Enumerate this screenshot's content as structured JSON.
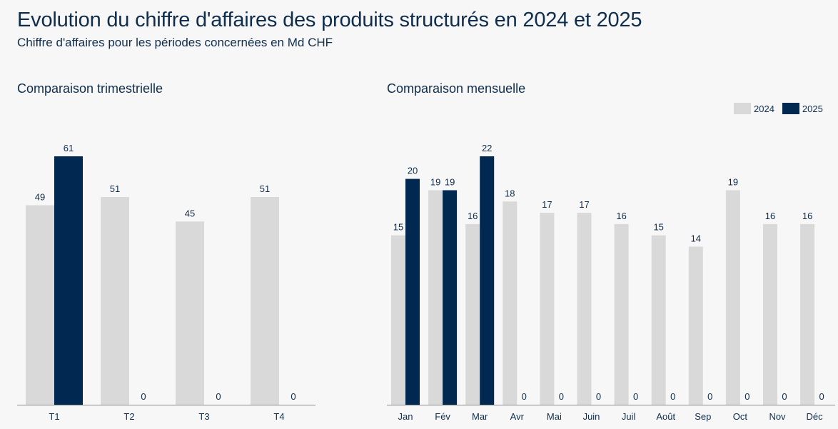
{
  "header": {
    "title": "Evolution du chiffre d'affaires des produits structurés en 2024 et 2025",
    "subtitle": "Chiffre d'affaires pour les périodes concernées en Md CHF"
  },
  "colors": {
    "series_2024": "#d9d9d9",
    "series_2025": "#002850",
    "text": "#0f2d4d",
    "axis": "#8c8c8c"
  },
  "legend": {
    "items": [
      {
        "label": "2024"
      },
      {
        "label": "2025"
      }
    ]
  },
  "chart_data": [
    {
      "type": "bar",
      "title": "Comparaison trimestrielle",
      "xlabel": "",
      "ylabel": "",
      "categories": [
        "T1",
        "T2",
        "T3",
        "T4"
      ],
      "series": [
        {
          "name": "2024",
          "values": [
            49,
            51,
            45,
            51
          ]
        },
        {
          "name": "2025",
          "values": [
            61,
            0,
            0,
            0
          ]
        }
      ],
      "ylim": [
        0,
        61
      ]
    },
    {
      "type": "bar",
      "title": "Comparaison mensuelle",
      "xlabel": "",
      "ylabel": "",
      "categories": [
        "Jan",
        "Fév",
        "Mar",
        "Avr",
        "Mai",
        "Juin",
        "Juil",
        "Août",
        "Sep",
        "Oct",
        "Nov",
        "Déc"
      ],
      "series": [
        {
          "name": "2024",
          "values": [
            15,
            19,
            16,
            18,
            17,
            17,
            16,
            15,
            14,
            19,
            16,
            16
          ]
        },
        {
          "name": "2025",
          "values": [
            20,
            19,
            22,
            0,
            0,
            0,
            0,
            0,
            0,
            0,
            0,
            0
          ]
        }
      ],
      "ylim": [
        0,
        22
      ]
    }
  ]
}
